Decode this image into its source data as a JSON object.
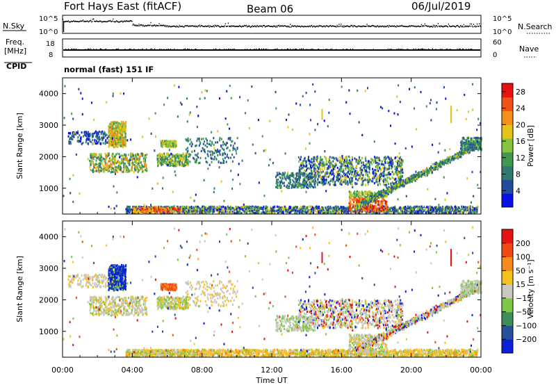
{
  "header": {
    "radar": "Fort Hays East (fitACF)",
    "beam": "Beam 06",
    "date": "06/Jul/2019"
  },
  "strips": {
    "nsky_label": "N.Sky",
    "nsky_ticks": [
      "10^5",
      "10^0"
    ],
    "nsearch_label": "N.Search",
    "nsearch_ticks": [
      "10^5",
      "10^0"
    ],
    "freq_label": "Freq.",
    "freq_unit": "[MHz]",
    "freq_ticks": [
      "18",
      "8"
    ],
    "nave_label": "Nave",
    "nave_ticks": [
      "60",
      "0"
    ],
    "cpid_label": "CPID",
    "cpid_text": "normal (fast) 151 IF"
  },
  "chart_data": [
    {
      "type": "heatmap",
      "name_printed": "power-panel",
      "ylabel": "Slant Range [km]",
      "yticks": [
        "4000",
        "3000",
        "2000",
        "1000"
      ],
      "ytick_values": [
        4000,
        3000,
        2000,
        1000
      ],
      "ylim": [
        180,
        4500
      ],
      "xlim_hours": [
        0,
        24
      ],
      "colorbar_label": "Power [dB]",
      "colorbar_ticks": [
        "28",
        "24",
        "20",
        "16",
        "12",
        "8",
        "4"
      ],
      "colorbar_tick_values": [
        28,
        24,
        20,
        16,
        12,
        8,
        4
      ],
      "colorbar_range": [
        0,
        30
      ],
      "colorbar_colors": [
        "#0b10e8",
        "#234b9e",
        "#2f7a73",
        "#3f9a4e",
        "#86c440",
        "#e6c218",
        "#f49018",
        "#ef5414",
        "#e81212"
      ]
    },
    {
      "type": "heatmap",
      "name_printed": "velocity-panel",
      "ylabel": "Slant Range [km]",
      "yticks": [
        "4000",
        "3000",
        "2000",
        "1000"
      ],
      "ytick_values": [
        4000,
        3000,
        2000,
        1000
      ],
      "ylim": [
        180,
        4500
      ],
      "xlim_hours": [
        0,
        24
      ],
      "colorbar_label": "Velocity [m s⁻¹]",
      "colorbar_ticks": [
        "200",
        "100",
        "50",
        "15",
        "−15",
        "−50",
        "−100",
        "−200"
      ],
      "colorbar_colors": [
        "#0b22d8",
        "#26509c",
        "#3c8e5a",
        "#7cc844",
        "#c8c8c0",
        "#f5c020",
        "#f68a1c",
        "#ef4a16",
        "#e41414"
      ]
    }
  ],
  "xaxis": {
    "ticks": [
      "00:00",
      "04:00",
      "08:00",
      "12:00",
      "16:00",
      "20:00",
      "00:00"
    ],
    "tick_hours": [
      0,
      4,
      8,
      12,
      16,
      20,
      24
    ],
    "label": "Time UT"
  }
}
